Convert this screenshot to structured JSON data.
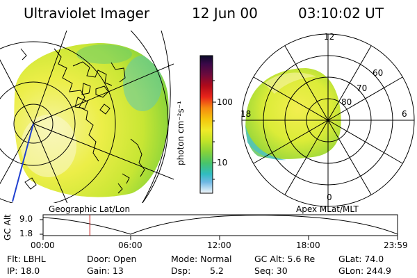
{
  "header": {
    "title": "Ultraviolet Imager",
    "date": "12 Jun 00",
    "time": "03:10:02 UT"
  },
  "colorbar": {
    "unit_label": "photon cm⁻²s⁻¹",
    "tick_labels": [
      "100",
      "10"
    ],
    "colors": [
      "#0a0a28",
      "#3a0848",
      "#6e0a3c",
      "#a00a1a",
      "#d8141a",
      "#f05a12",
      "#f59a0a",
      "#f3c20c",
      "#f0ea28",
      "#c4e628",
      "#8ad43a",
      "#54c850",
      "#2ec0a0",
      "#3aa8d8",
      "#8cc8e8",
      "#e8f4f8"
    ]
  },
  "maps": {
    "left_label": "Geographic Lat/Lon",
    "right_label": "Apex MLat/MLT",
    "polar_labels": {
      "mlt_top": "12",
      "mlt_left": "18",
      "mlt_right": "6",
      "mlt_bottom": "0",
      "lat_60": "60",
      "lat_70": "70",
      "lat_80": "80"
    }
  },
  "timeline": {
    "y_axis_label": "GC Alt",
    "y_ticks": [
      "9.0",
      "1.8"
    ],
    "x_ticks": [
      "00:00",
      "06:00",
      "12:00",
      "18:00",
      "23:59"
    ],
    "current_time_fraction": 0.1319,
    "marker_color": "#c00000"
  },
  "info": {
    "row1": [
      "Flt: LBHL",
      "Door: Open",
      "Mode: Normal",
      "GC Alt: 5.6 Re",
      "GLat: 74.0"
    ],
    "row2": [
      "IP: 18.0",
      "Gain: 13",
      "Dsp:",
      "5.2",
      "Seq: 30",
      "GLon: 244.9"
    ]
  },
  "icons": {
    "geo_map": "earth-projection-icon",
    "polar_plot": "polar-dial-icon"
  }
}
